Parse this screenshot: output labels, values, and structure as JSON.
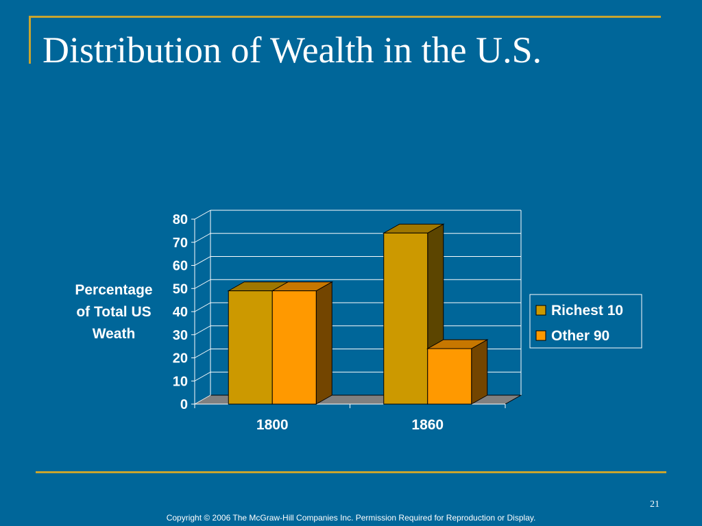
{
  "slide": {
    "title": "Distribution of Wealth in the U.S.",
    "page_number": "21",
    "copyright": "Copyright © 2006 The McGraw-Hill Companies Inc. Permission Required for Reproduction or Display."
  },
  "colors": {
    "background": "#006699",
    "frame": "#C9A52E",
    "richest": "#CC9900",
    "other": "#FF9900"
  },
  "chart_data": {
    "type": "bar",
    "style": "3d-column",
    "title": "",
    "xlabel": "",
    "ylabel": "Percentage of Total US Weath",
    "ylabel_lines": [
      "Percentage",
      "of Total US",
      "Weath"
    ],
    "categories": [
      "1800",
      "1860"
    ],
    "series": [
      {
        "name": "Richest 10",
        "values": [
          49,
          74
        ],
        "color": "#CC9900"
      },
      {
        "name": "Other 90",
        "values": [
          49,
          24
        ],
        "color": "#FF9900"
      }
    ],
    "ylim": [
      0,
      80
    ],
    "yticks": [
      0,
      10,
      20,
      30,
      40,
      50,
      60,
      70,
      80
    ],
    "grid": true,
    "legend": "right"
  }
}
